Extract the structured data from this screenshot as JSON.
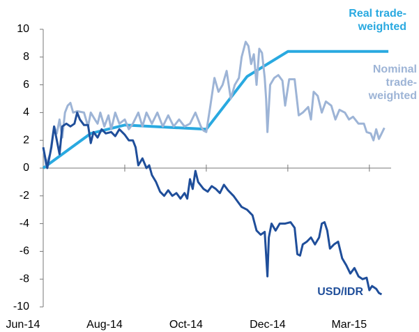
{
  "chart_data": {
    "type": "line",
    "xlim": [
      0,
      256
    ],
    "xticks": [
      {
        "value": 0,
        "label": "Jun-14"
      },
      {
        "value": 60,
        "label": "Aug-14"
      },
      {
        "value": 120,
        "label": "Oct-14"
      },
      {
        "value": 180,
        "label": "Dec-14"
      },
      {
        "value": 240,
        "label": "Mar-15"
      }
    ],
    "ylim": [
      -10,
      10
    ],
    "yticks": [
      10,
      8,
      6,
      4,
      2,
      0,
      -2,
      -4,
      -6,
      -8,
      -10
    ],
    "grid": false,
    "series": [
      {
        "name": "Real trade-weighted",
        "color": "#29a9e0",
        "x": [
          0,
          35,
          60,
          120,
          150,
          180,
          254
        ],
        "values": [
          0,
          2.5,
          3.1,
          2.8,
          6.6,
          8.4,
          8.4
        ]
      },
      {
        "name": "Nominal trade-weighted",
        "color": "#9db4d6",
        "x": [
          0,
          2,
          5,
          8,
          10,
          12,
          14,
          16,
          18,
          20,
          22,
          25,
          30,
          33,
          35,
          38,
          40,
          42,
          45,
          48,
          50,
          53,
          56,
          60,
          63,
          66,
          70,
          73,
          76,
          80,
          84,
          88,
          92,
          96,
          100,
          104,
          108,
          112,
          116,
          118,
          120,
          123,
          126,
          129,
          132,
          135,
          138,
          141,
          144,
          146,
          149,
          151,
          153,
          155,
          157,
          159,
          161,
          163,
          164,
          165,
          167,
          170,
          173,
          176,
          178,
          181,
          185,
          188,
          191,
          195,
          197,
          199,
          202,
          205,
          208,
          212,
          215,
          218,
          222,
          225,
          228,
          232,
          236,
          238,
          241,
          243,
          245,
          247,
          249,
          251
        ],
        "values": [
          1.5,
          0.2,
          1,
          3,
          2.5,
          3.5,
          2.2,
          4,
          4.5,
          4.7,
          4,
          4.1,
          4,
          3,
          4,
          3.5,
          3.2,
          4,
          3,
          3.8,
          2.8,
          4,
          3.2,
          3.5,
          2.8,
          3.2,
          4,
          3,
          4,
          3.2,
          4,
          3,
          3.8,
          3,
          3.5,
          3,
          3.2,
          4,
          3,
          2.7,
          2.6,
          4.5,
          6.5,
          5.5,
          6,
          7,
          5,
          6,
          6.5,
          8,
          9.1,
          8.8,
          7.5,
          8.2,
          6,
          8.6,
          8.3,
          6.5,
          5,
          2.6,
          6,
          6.5,
          6.7,
          6.3,
          4.5,
          6.4,
          6.4,
          3.8,
          4,
          4.4,
          3.5,
          5.5,
          5.2,
          4,
          4.8,
          4.5,
          3.5,
          4.2,
          4,
          3.5,
          3.7,
          3.2,
          3.2,
          2.6,
          2.5,
          2,
          2.8,
          2.1,
          2.5,
          2.9
        ]
      },
      {
        "name": "USD/IDR",
        "color": "#1f4e9a",
        "x": [
          0,
          3,
          6,
          8,
          10,
          12,
          14,
          17,
          20,
          23,
          25,
          27,
          30,
          33,
          35,
          37,
          40,
          43,
          46,
          50,
          53,
          56,
          60,
          63,
          66,
          68,
          70,
          73,
          76,
          78,
          80,
          83,
          86,
          89,
          92,
          95,
          98,
          101,
          104,
          106,
          108,
          110,
          112,
          114,
          118,
          121,
          124,
          127,
          130,
          133,
          136,
          140,
          143,
          146,
          150,
          154,
          157,
          160,
          163,
          165,
          166,
          168,
          171,
          174,
          178,
          182,
          185,
          187,
          189,
          191,
          194,
          197,
          200,
          203,
          205,
          207,
          209,
          211,
          214,
          217,
          220,
          223,
          226,
          229,
          232,
          235,
          238,
          240,
          242,
          245,
          247,
          249
        ],
        "values": [
          1.5,
          0,
          1.5,
          3,
          2,
          1,
          3,
          3.2,
          3,
          3.2,
          4,
          3.5,
          3.1,
          3.1,
          1.8,
          2.6,
          2.2,
          2.8,
          2.5,
          2.6,
          2.3,
          2.8,
          2.4,
          2,
          2,
          1.5,
          0.2,
          0.7,
          0,
          0.2,
          -0.5,
          -1,
          -1.7,
          -2,
          -1.6,
          -2,
          -1.8,
          -2.2,
          -1.8,
          -2.2,
          -0.8,
          -1.5,
          -0.2,
          -1,
          -1.5,
          -1.7,
          -1.3,
          -1.5,
          -1.8,
          -1.2,
          -1.6,
          -2,
          -2.4,
          -2.8,
          -3,
          -3.4,
          -4.5,
          -4.8,
          -4.6,
          -7.8,
          -5,
          -4,
          -4.5,
          -4,
          -4,
          -3.9,
          -4.3,
          -6.2,
          -6.3,
          -5.5,
          -5.3,
          -5,
          -5.5,
          -5,
          -4,
          -3.9,
          -4.5,
          -5.8,
          -5.5,
          -5.3,
          -6.5,
          -7,
          -7.6,
          -7.2,
          -7.8,
          -8,
          -7.9,
          -8.8,
          -8.5,
          -8.7,
          -9,
          -9.1
        ]
      }
    ]
  }
}
